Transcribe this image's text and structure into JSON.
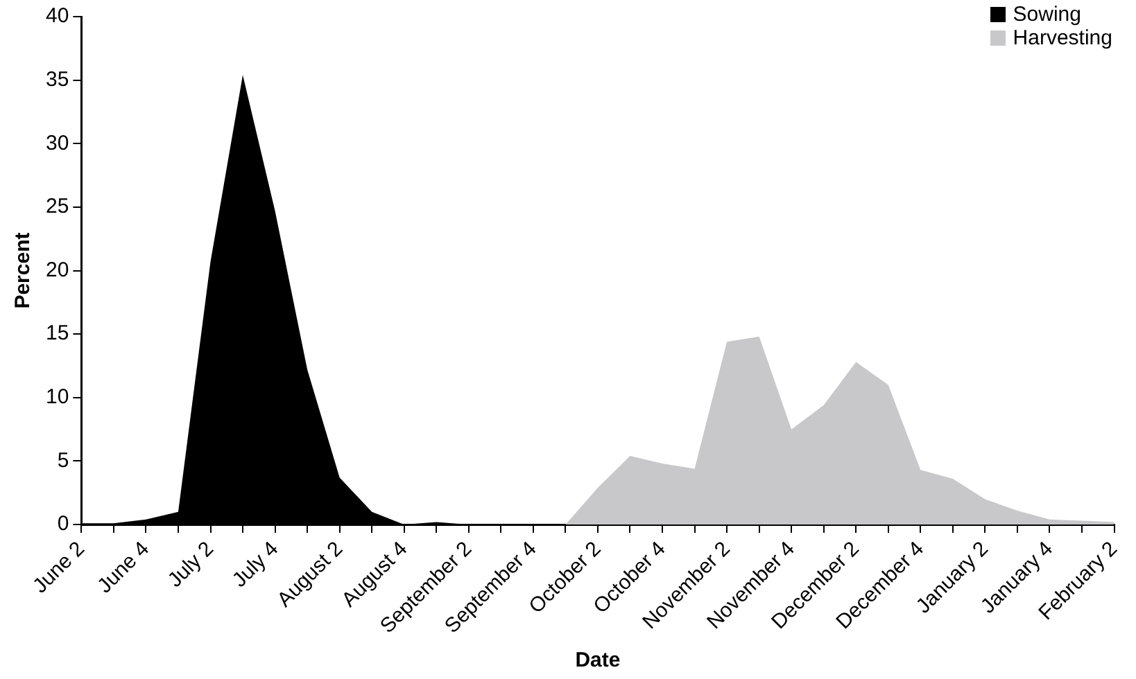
{
  "chart_data": {
    "type": "area",
    "xlabel": "Date",
    "ylabel": "Percent",
    "categories": [
      "June 2",
      null,
      "June 4",
      null,
      "July 2",
      null,
      "July 4",
      null,
      "August 2",
      null,
      "August 4",
      null,
      "September 2",
      null,
      "September 4",
      null,
      "October 2",
      null,
      "October 4",
      null,
      "November 2",
      null,
      "November 4",
      null,
      "December 2",
      null,
      "December 4",
      null,
      "January 2",
      null,
      "January 4",
      null,
      "February 2"
    ],
    "series": [
      {
        "name": "Sowing",
        "color": "#000000",
        "values": [
          0.1,
          0.1,
          0.4,
          1.0,
          20.7,
          35.4,
          24.7,
          12.2,
          3.7,
          1.0,
          0,
          0.2,
          0,
          0,
          0,
          null,
          null,
          null,
          null,
          null,
          null,
          null,
          null,
          null,
          null,
          null,
          null,
          null,
          null,
          null,
          null,
          null,
          null
        ]
      },
      {
        "name": "Harvesting",
        "color": "#c8c8ca",
        "values": [
          null,
          null,
          null,
          null,
          null,
          null,
          null,
          null,
          null,
          null,
          null,
          null,
          null,
          null,
          null,
          0,
          2.9,
          5.4,
          4.8,
          4.4,
          14.4,
          14.8,
          7.5,
          9.4,
          12.8,
          11.0,
          4.3,
          3.6,
          2.0,
          1.1,
          0.4,
          0.3,
          0.2
        ]
      }
    ],
    "ylim": [
      0,
      40
    ],
    "yticks": [
      0,
      5,
      10,
      15,
      20,
      25,
      30,
      35,
      40
    ],
    "grid": false,
    "legend": "top right"
  }
}
